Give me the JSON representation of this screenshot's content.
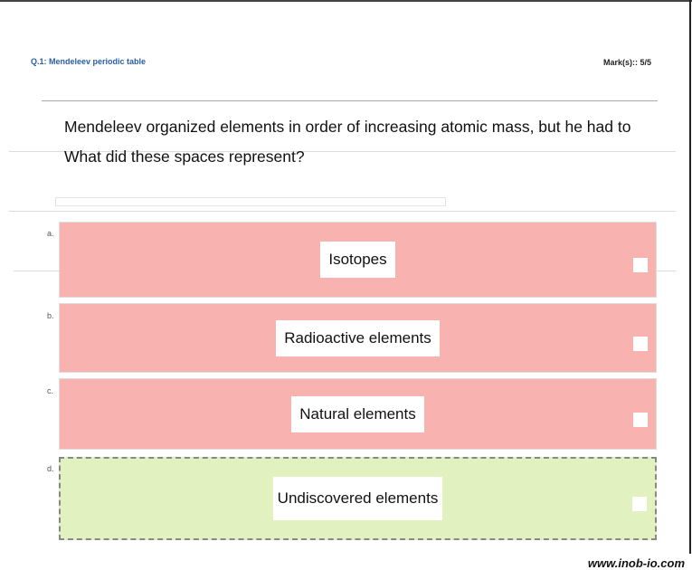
{
  "question": {
    "title": "Q.1: Mendeleev periodic table",
    "marks": "Mark(s):: 5/5",
    "line1": "Mendeleev organized elements in order of increasing atomic mass, but he had to",
    "line2": "What did these spaces represent?"
  },
  "options": [
    {
      "label": "a.",
      "text": "Isotopes",
      "status": "incorrect"
    },
    {
      "label": "b.",
      "text": "Radioactive elements",
      "status": "incorrect"
    },
    {
      "label": "c.",
      "text": "Natural elements",
      "status": "incorrect"
    },
    {
      "label": "d.",
      "text": "Undiscovered elements",
      "status": "correct"
    }
  ],
  "colors": {
    "incorrect": "#f8b3b1",
    "correct": "#e1f2c0",
    "title": "#2a5ea8"
  },
  "watermark": "www.inob-io.com"
}
